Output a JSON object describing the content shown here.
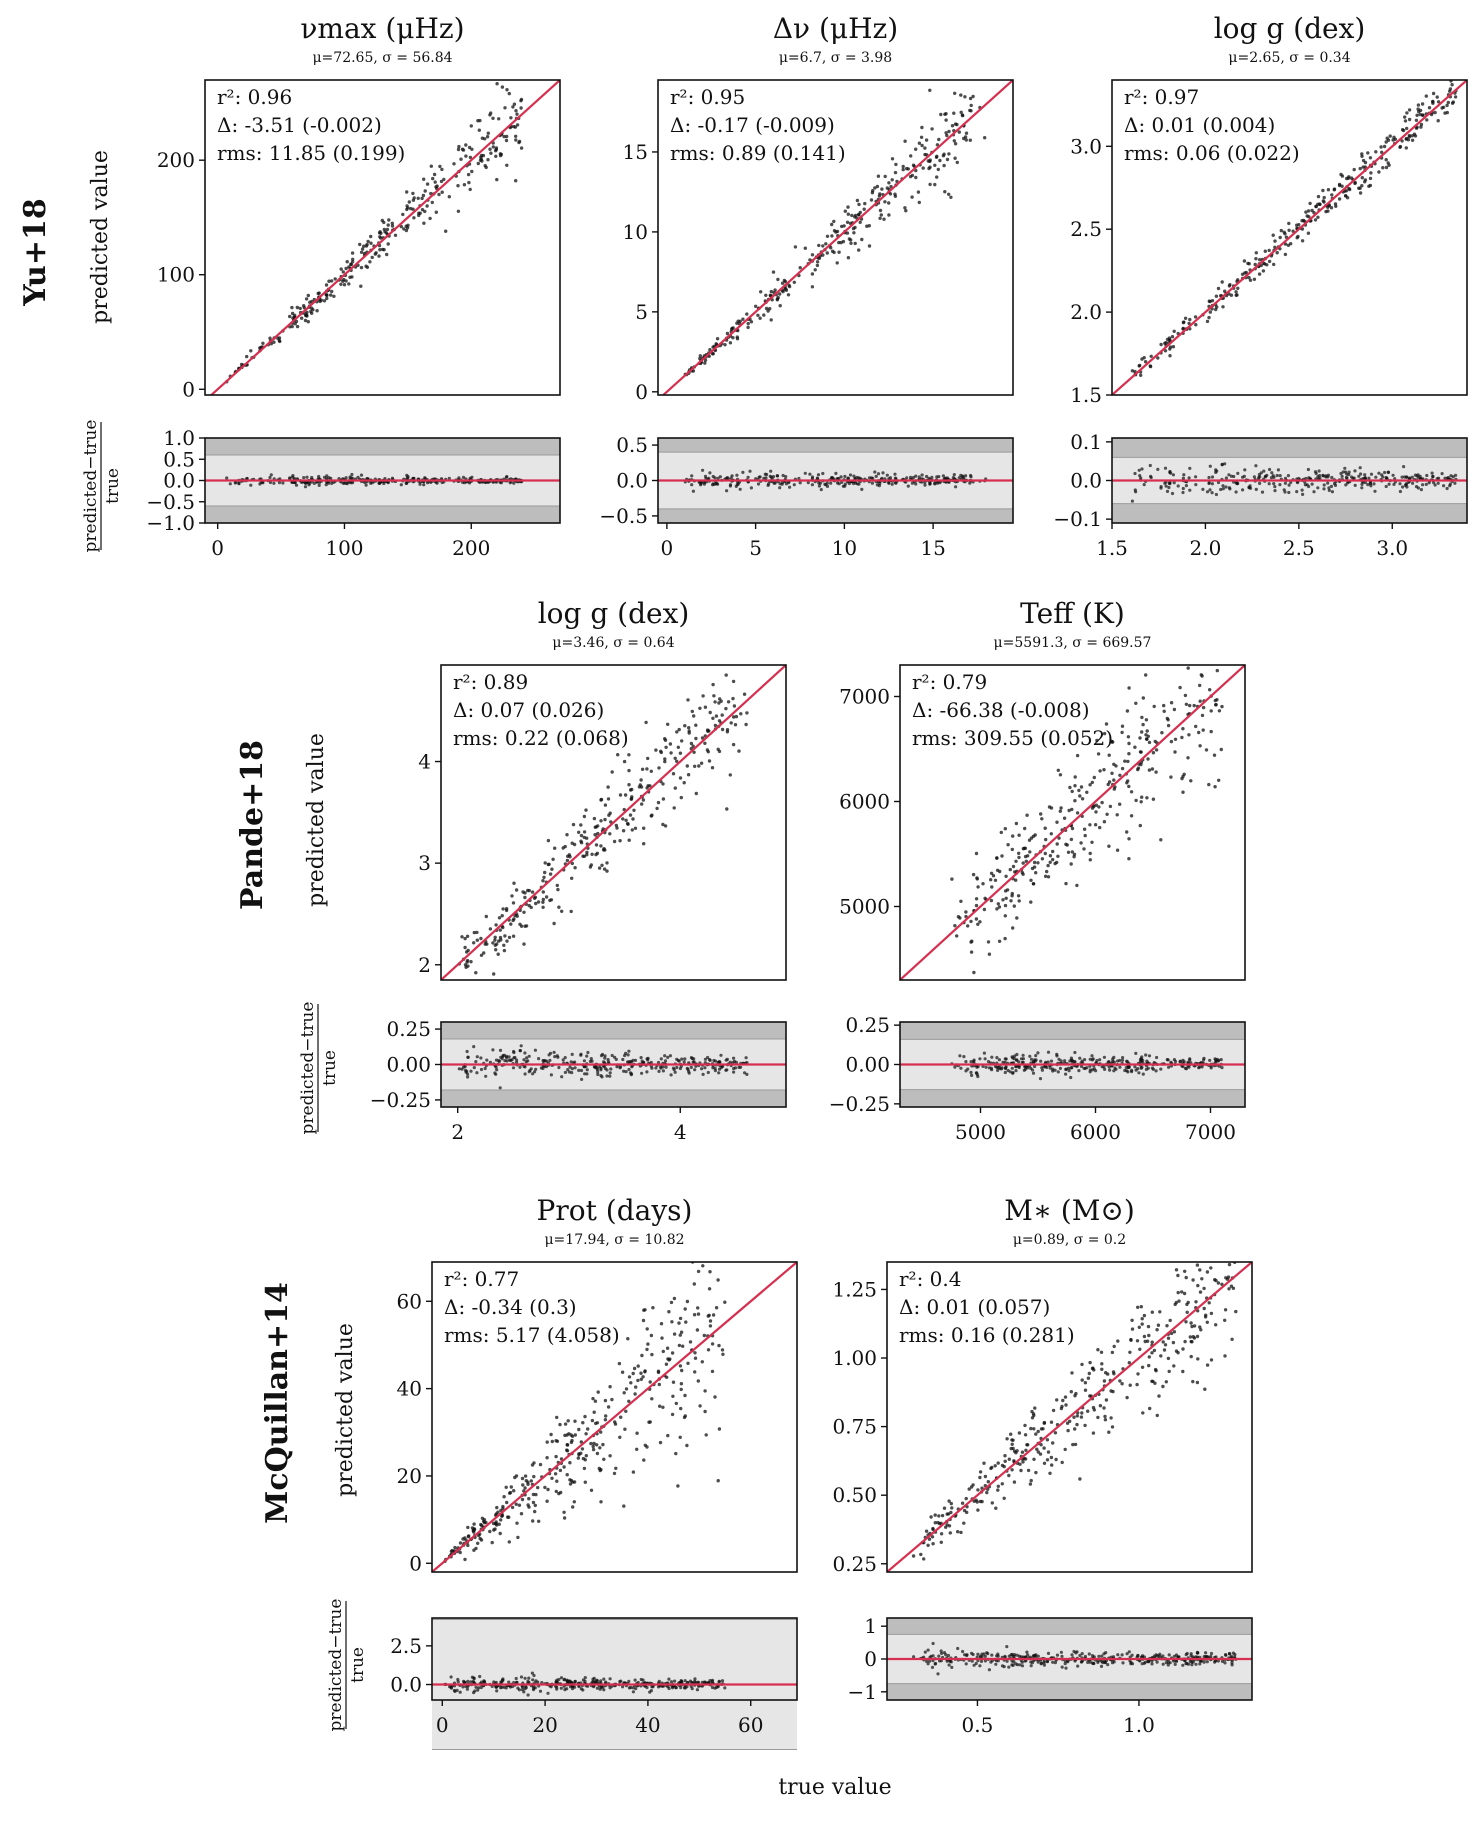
{
  "figure": {
    "x_axis_label": "true value",
    "y_axis_label": "predicted value",
    "residual_label_top": "predicted−true",
    "residual_label_bottom": "true",
    "colors": {
      "fit_line": "#d62f4f",
      "points": "#111111",
      "band_inner": "#e6e6e6",
      "band_mid": "#d4d4d4",
      "band_outer": "#bdbdbd"
    }
  },
  "rows": [
    {
      "label": "Yu+18"
    },
    {
      "label": "Pande+18"
    },
    {
      "label": "McQuillan+14"
    }
  ],
  "chart_data": [
    {
      "type": "scatter",
      "row": 0,
      "title": "νmax (μHz)",
      "subtitle": "μ=72.65, σ = 56.84",
      "stats": {
        "r2": "r²:  0.96",
        "delta": "Δ:  -3.51 (-0.002)",
        "rms": "rms:  11.85 (0.199)"
      },
      "xlim": [
        -10,
        270
      ],
      "ylim": [
        -5,
        270
      ],
      "yticks": [
        0,
        100,
        200
      ],
      "ytick_labels": [
        "0",
        "100",
        "200"
      ],
      "xticks": [
        0,
        100,
        200
      ],
      "xtick_labels": [
        "0",
        "100",
        "200"
      ],
      "res_ylim": [
        -1.0,
        1.0
      ],
      "res_yticks": [
        1.0,
        0.5,
        0.0,
        -0.5,
        -1.0
      ],
      "res_ytick_labels": [
        "1.0",
        "0.5",
        "0.0",
        "−0.5",
        "−1.0"
      ],
      "res_bands": [
        0.6,
        1.0
      ],
      "sample": {
        "n": 320,
        "xmin": 5,
        "xmax": 240,
        "spread": 0.08,
        "res_spread": 0.06,
        "seed": 11
      }
    },
    {
      "type": "scatter",
      "row": 0,
      "title": "Δν (μHz)",
      "subtitle": "μ=6.7, σ = 3.98",
      "stats": {
        "r2": "r²:  0.95",
        "delta": "Δ:  -0.17 (-0.009)",
        "rms": "rms:  0.89 (0.141)"
      },
      "xlim": [
        -0.5,
        19.5
      ],
      "ylim": [
        -0.2,
        19.5
      ],
      "yticks": [
        0,
        5,
        10,
        15
      ],
      "ytick_labels": [
        "0",
        "5",
        "10",
        "15"
      ],
      "xticks": [
        0,
        5,
        10,
        15
      ],
      "xtick_labels": [
        "0",
        "5",
        "10",
        "15"
      ],
      "res_ylim": [
        -0.6,
        0.6
      ],
      "res_yticks": [
        0.5,
        0.0,
        -0.5
      ],
      "res_ytick_labels": [
        "0.5",
        "0.0",
        "−0.5"
      ],
      "res_bands": [
        0.4,
        0.6
      ],
      "sample": {
        "n": 320,
        "xmin": 1,
        "xmax": 18,
        "spread": 0.08,
        "res_spread": 0.06,
        "seed": 23
      }
    },
    {
      "type": "scatter",
      "row": 0,
      "title": "log g (dex)",
      "subtitle": "μ=2.65, σ = 0.34",
      "stats": {
        "r2": "r²:  0.97",
        "delta": "Δ:  0.01 (0.004)",
        "rms": "rms:  0.06 (0.022)"
      },
      "xlim": [
        1.5,
        3.4
      ],
      "ylim": [
        1.5,
        3.4
      ],
      "yticks": [
        1.5,
        2.0,
        2.5,
        3.0
      ],
      "ytick_labels": [
        "1.5",
        "2.0",
        "2.5",
        "3.0"
      ],
      "xticks": [
        1.5,
        2.0,
        2.5,
        3.0
      ],
      "xtick_labels": [
        "1.5",
        "2.0",
        "2.5",
        "3.0"
      ],
      "res_ylim": [
        -0.11,
        0.11
      ],
      "res_yticks": [
        0.1,
        0.0,
        -0.1
      ],
      "res_ytick_labels": [
        "0.1",
        "0.0",
        "−0.1"
      ],
      "res_bands": [
        0.06,
        0.11
      ],
      "sample": {
        "n": 320,
        "xmin": 1.6,
        "xmax": 3.35,
        "spread": 0.02,
        "res_spread": 0.02,
        "seed": 37
      }
    },
    {
      "type": "scatter",
      "row": 1,
      "title": "log g (dex)",
      "subtitle": "μ=3.46, σ = 0.64",
      "stats": {
        "r2": "r²:  0.89",
        "delta": "Δ:  0.07 (0.026)",
        "rms": "rms:  0.22 (0.068)"
      },
      "xlim": [
        1.85,
        4.95
      ],
      "ylim": [
        1.85,
        4.95
      ],
      "yticks": [
        2,
        3,
        4
      ],
      "ytick_labels": [
        "2",
        "3",
        "4"
      ],
      "xticks": [
        2,
        4
      ],
      "xtick_labels": [
        "2",
        "4"
      ],
      "res_ylim": [
        -0.3,
        0.3
      ],
      "res_yticks": [
        0.25,
        0.0,
        -0.25
      ],
      "res_ytick_labels": [
        "0.25",
        "0.00",
        "−0.25"
      ],
      "res_bands": [
        0.18,
        0.3
      ],
      "sample": {
        "n": 340,
        "xmin": 2.0,
        "xmax": 4.6,
        "spread": 0.07,
        "res_spread": 0.06,
        "seed": 41
      }
    },
    {
      "type": "scatter",
      "row": 1,
      "title": "Teff (K)",
      "subtitle": "μ=5591.3, σ = 669.57",
      "stats": {
        "r2": "r²:  0.79",
        "delta": "Δ:  -66.38 (-0.008)",
        "rms": "rms:  309.55 (0.052)"
      },
      "xlim": [
        4300,
        7300
      ],
      "ylim": [
        4300,
        7300
      ],
      "yticks": [
        5000,
        6000,
        7000
      ],
      "ytick_labels": [
        "5000",
        "6000",
        "7000"
      ],
      "xticks": [
        5000,
        6000,
        7000
      ],
      "xtick_labels": [
        "5000",
        "6000",
        "7000"
      ],
      "res_ylim": [
        -0.27,
        0.27
      ],
      "res_yticks": [
        0.25,
        0.0,
        -0.25
      ],
      "res_ytick_labels": [
        "0.25",
        "0.00",
        "−0.25"
      ],
      "res_bands": [
        0.16,
        0.27
      ],
      "sample": {
        "n": 340,
        "xmin": 4700,
        "xmax": 7100,
        "spread": 0.05,
        "res_spread": 0.04,
        "seed": 53
      }
    },
    {
      "type": "scatter",
      "row": 2,
      "title": "Prot (days)",
      "subtitle": "μ=17.94, σ = 10.82",
      "stats": {
        "r2": "r²:  0.77",
        "delta": "Δ:  -0.34 (0.3)",
        "rms": "rms:  5.17 (4.058)"
      },
      "xlim": [
        -2,
        69
      ],
      "ylim": [
        -2,
        69
      ],
      "yticks": [
        0,
        20,
        40,
        60
      ],
      "ytick_labels": [
        "0",
        "20",
        "40",
        "60"
      ],
      "xticks": [
        0,
        20,
        40,
        60
      ],
      "xtick_labels": [
        "0",
        "20",
        "40",
        "60"
      ],
      "res_ylim": [
        -1.0,
        4.3
      ],
      "res_yticks": [
        2.5,
        0.0
      ],
      "res_ytick_labels": [
        "2.5",
        "0.0"
      ],
      "res_bands": [
        4.2,
        4.3
      ],
      "sample": {
        "n": 380,
        "xmin": 0.5,
        "xmax": 55,
        "spread": 0.25,
        "res_spread": 0.25,
        "seed": 67
      }
    },
    {
      "type": "scatter",
      "row": 2,
      "title": "M∗ (M⊙)",
      "subtitle": "μ=0.89, σ = 0.2",
      "stats": {
        "r2": "r²:  0.4",
        "delta": "Δ:  0.01 (0.057)",
        "rms": "rms:  0.16 (0.281)"
      },
      "xlim": [
        0.22,
        1.35
      ],
      "ylim": [
        0.22,
        1.35
      ],
      "yticks": [
        0.25,
        0.5,
        0.75,
        1.0,
        1.25
      ],
      "ytick_labels": [
        "0.25",
        "0.50",
        "0.75",
        "1.00",
        "1.25"
      ],
      "xticks": [
        0.5,
        1.0
      ],
      "xtick_labels": [
        "0.5",
        "1.0"
      ],
      "res_ylim": [
        -1.25,
        1.25
      ],
      "res_yticks": [
        1,
        0,
        -1
      ],
      "res_ytick_labels": [
        "1",
        "0",
        "−1"
      ],
      "res_bands": [
        0.75,
        1.25
      ],
      "sample": {
        "n": 380,
        "xmin": 0.3,
        "xmax": 1.3,
        "spread": 0.1,
        "res_spread": 0.15,
        "seed": 79
      }
    }
  ]
}
